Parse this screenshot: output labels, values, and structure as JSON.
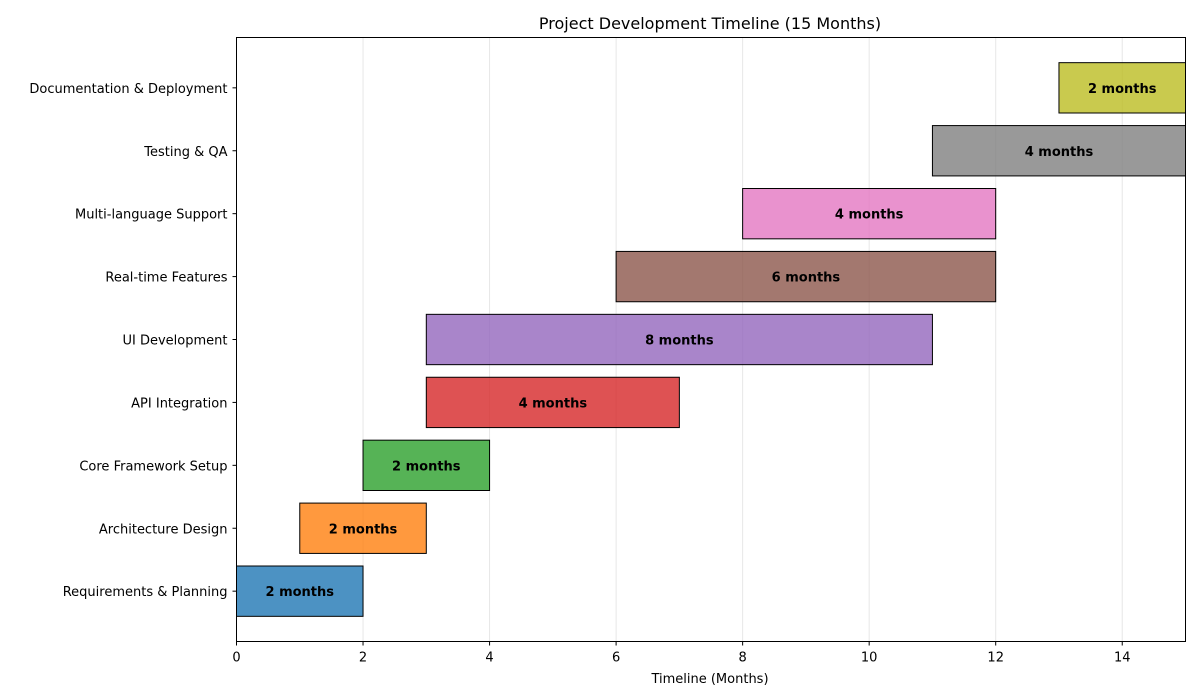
{
  "chart_data": {
    "type": "bar",
    "orientation": "horizontal",
    "chart_subtype": "gantt",
    "title": "Project Development Timeline (15 Months)",
    "xlabel": "Timeline (Months)",
    "ylabel": "",
    "xlim": [
      0,
      15
    ],
    "xticks": [
      0,
      2,
      4,
      6,
      8,
      10,
      12,
      14
    ],
    "grid": "vertical",
    "legend": "none",
    "tasks": [
      {
        "name": "Requirements & Planning",
        "start": 0,
        "duration": 2,
        "label": "2 months",
        "color": "#1f77b4"
      },
      {
        "name": "Architecture Design",
        "start": 1,
        "duration": 2,
        "label": "2 months",
        "color": "#ff7f0e"
      },
      {
        "name": "Core Framework Setup",
        "start": 2,
        "duration": 2,
        "label": "2 months",
        "color": "#2ca02c"
      },
      {
        "name": "API Integration",
        "start": 3,
        "duration": 4,
        "label": "4 months",
        "color": "#d62728"
      },
      {
        "name": "UI Development",
        "start": 3,
        "duration": 8,
        "label": "8 months",
        "color": "#9467bd"
      },
      {
        "name": "Real-time Features",
        "start": 6,
        "duration": 6,
        "label": "6 months",
        "color": "#8c564b"
      },
      {
        "name": "Multi-language Support",
        "start": 8,
        "duration": 4,
        "label": "4 months",
        "color": "#e377c2"
      },
      {
        "name": "Testing & QA",
        "start": 11,
        "duration": 4,
        "label": "4 months",
        "color": "#7f7f7f"
      },
      {
        "name": "Documentation & Deployment",
        "start": 13,
        "duration": 2,
        "label": "2 months",
        "color": "#bcbd22"
      }
    ]
  }
}
